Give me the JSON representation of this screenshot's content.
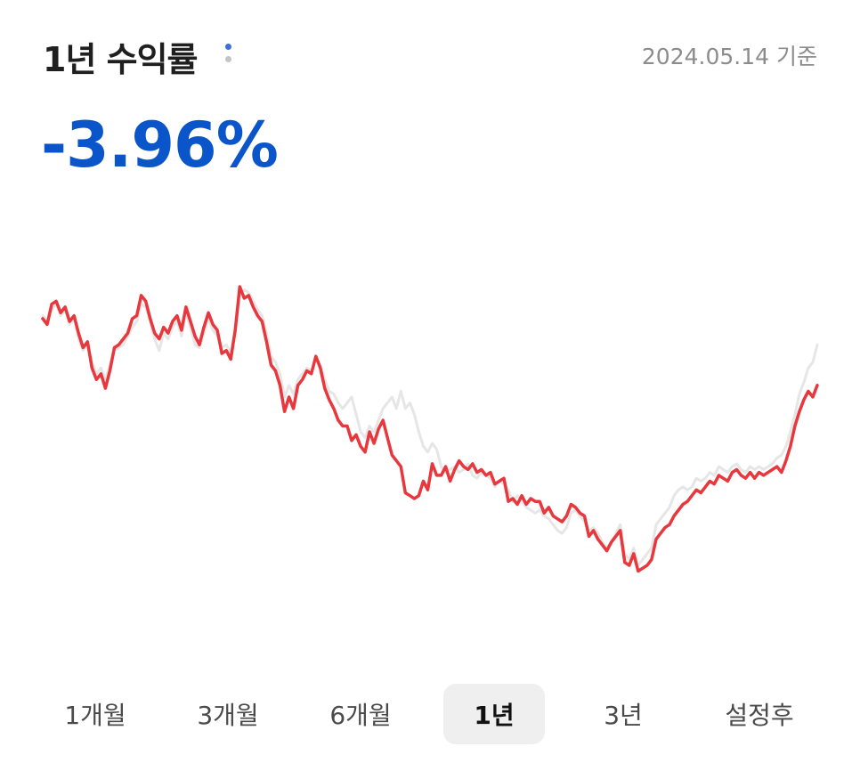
{
  "header": {
    "title": "1년 수익률",
    "as_of": "2024.05.14 기준"
  },
  "return_value": "-3.96%",
  "tabs": [
    {
      "label": "1개월",
      "active": false
    },
    {
      "label": "3개월",
      "active": false
    },
    {
      "label": "6개월",
      "active": false
    },
    {
      "label": "1년",
      "active": true
    },
    {
      "label": "3년",
      "active": false
    },
    {
      "label": "설정후",
      "active": false
    }
  ],
  "colors": {
    "fund_line": "#e8383d",
    "benchmark_line": "#e6e6e6",
    "return_value": "#0a55c9",
    "info_dot_top": "#3b6fe0",
    "info_dot_bottom": "#c4c4c4"
  },
  "chart_data": {
    "type": "line",
    "xlabel": "",
    "ylabel": "",
    "grid": false,
    "legend": "none",
    "axes_visible": false,
    "note_units": "index values relative to chart vertical range (0 = lowest, 100 = highest plotted point)",
    "ylim": [
      0,
      100
    ],
    "series": [
      {
        "role": "fund",
        "color": "#e8383d",
        "values": [
          89,
          87,
          94,
          95,
          91,
          93,
          88,
          90,
          84,
          79,
          81,
          72,
          68,
          70,
          65,
          71,
          79,
          80,
          82,
          84,
          89,
          90,
          97,
          95,
          89,
          84,
          82,
          86,
          84,
          88,
          90,
          85,
          93,
          88,
          83,
          80,
          86,
          91,
          87,
          85,
          77,
          78,
          75,
          85,
          100,
          96,
          97,
          93,
          90,
          88,
          81,
          73,
          71,
          66,
          57,
          62,
          58,
          66,
          68,
          71,
          70,
          76,
          72,
          65,
          61,
          58,
          54,
          52,
          52,
          47,
          49,
          45,
          43,
          50,
          46,
          51,
          54,
          48,
          42,
          40,
          38,
          29,
          28,
          27,
          28,
          33,
          30,
          39,
          35,
          35,
          38,
          33,
          37,
          40,
          38,
          37,
          39,
          36,
          37,
          35,
          36,
          32,
          33,
          34,
          26,
          27,
          25,
          28,
          25,
          27,
          26,
          26,
          22,
          24,
          21,
          20,
          19,
          21,
          25,
          24,
          22,
          21,
          14,
          16,
          13,
          11,
          9,
          12,
          14,
          16,
          5,
          4,
          8,
          2,
          3,
          4,
          6,
          13,
          15,
          17,
          18,
          21,
          23,
          25,
          26,
          28,
          30,
          29,
          31,
          33,
          32,
          35,
          34,
          33,
          36,
          37,
          35,
          34,
          36,
          34,
          36,
          35,
          36,
          37,
          38,
          36,
          40,
          45,
          52,
          57,
          61,
          64,
          62,
          66
        ]
      },
      {
        "role": "benchmark",
        "color": "#e6e6e6",
        "values": [
          90,
          88,
          92,
          94,
          90,
          92,
          87,
          89,
          82,
          78,
          80,
          74,
          70,
          72,
          68,
          73,
          78,
          79,
          80,
          83,
          86,
          88,
          94,
          93,
          88,
          82,
          78,
          84,
          82,
          86,
          88,
          83,
          91,
          86,
          80,
          79,
          84,
          89,
          85,
          83,
          79,
          80,
          77,
          84,
          97,
          99,
          98,
          95,
          92,
          90,
          84,
          76,
          74,
          70,
          62,
          66,
          63,
          68,
          70,
          72,
          71,
          75,
          73,
          68,
          64,
          63,
          60,
          58,
          60,
          62,
          56,
          50,
          48,
          52,
          50,
          54,
          58,
          60,
          62,
          58,
          64,
          58,
          60,
          56,
          50,
          45,
          43,
          46,
          44,
          38,
          36,
          37,
          38,
          36,
          37,
          39,
          35,
          34,
          36,
          35,
          34,
          31,
          33,
          32,
          30,
          26,
          28,
          26,
          24,
          23,
          22,
          23,
          21,
          20,
          18,
          16,
          15,
          17,
          22,
          23,
          21,
          19,
          16,
          17,
          15,
          12,
          10,
          12,
          15,
          18,
          8,
          6,
          10,
          4,
          6,
          8,
          10,
          18,
          20,
          22,
          24,
          28,
          30,
          31,
          30,
          31,
          34,
          33,
          34,
          36,
          35,
          38,
          37,
          36,
          38,
          39,
          37,
          36,
          38,
          37,
          38,
          37,
          38,
          39,
          41,
          42,
          45,
          50,
          56,
          63,
          67,
          72,
          74,
          80
        ]
      }
    ]
  }
}
